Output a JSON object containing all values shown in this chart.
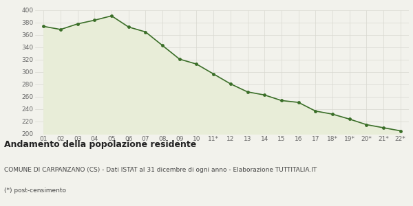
{
  "x_labels": [
    "01",
    "02",
    "03",
    "04",
    "05",
    "06",
    "07",
    "08",
    "09",
    "10",
    "11*",
    "12",
    "13",
    "14",
    "15",
    "16",
    "17",
    "18*",
    "19*",
    "20*",
    "21*",
    "22*"
  ],
  "y_values": [
    374,
    369,
    378,
    384,
    391,
    373,
    365,
    343,
    321,
    313,
    297,
    281,
    268,
    263,
    254,
    251,
    237,
    232,
    224,
    215,
    210,
    205
  ],
  "line_color": "#3a6e28",
  "fill_color": "#e8edd8",
  "marker_color": "#3a6e28",
  "bg_color": "#f2f2ec",
  "grid_color": "#d8d8d0",
  "ylim": [
    200,
    400
  ],
  "yticks": [
    200,
    220,
    240,
    260,
    280,
    300,
    320,
    340,
    360,
    380,
    400
  ],
  "title": "Andamento della popolazione residente",
  "subtitle": "COMUNE DI CARPANZANO (CS) - Dati ISTAT al 31 dicembre di ogni anno - Elaborazione TUTTITALIA.IT",
  "footnote": "(*) post-censimento",
  "title_fontsize": 9,
  "subtitle_fontsize": 6.5,
  "footnote_fontsize": 6.5,
  "tick_fontsize": 6.5,
  "line_width": 1.2,
  "marker_size": 3.5
}
